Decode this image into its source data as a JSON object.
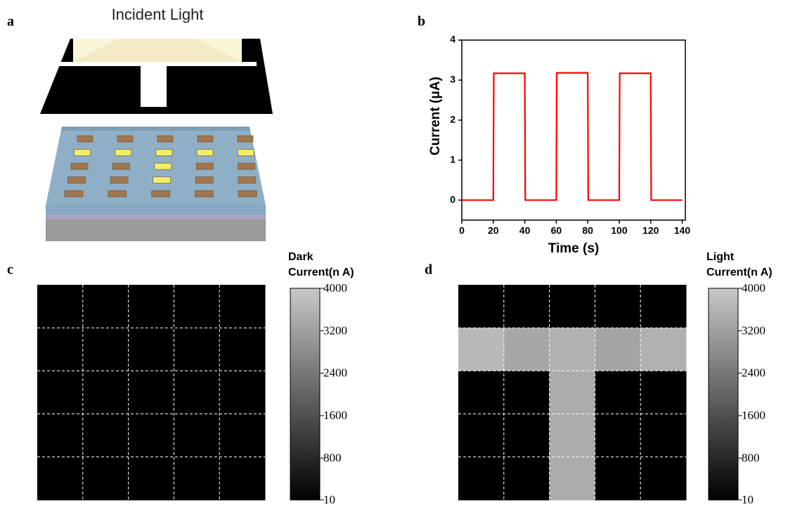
{
  "illustration": {
    "label": "a",
    "caption": "Incident Light"
  },
  "chart_data": [
    {
      "type": "line",
      "label": "b",
      "xlabel": "Time (s)",
      "ylabel": "Current (μA)",
      "color": "#ff0000",
      "x": [
        0,
        20,
        20.3,
        40,
        40.3,
        60,
        60.3,
        80,
        80.3,
        100,
        100.3,
        120,
        120.3,
        140
      ],
      "values": [
        0,
        0,
        3.17,
        3.17,
        0,
        0,
        3.18,
        3.18,
        0,
        0,
        3.17,
        3.17,
        0,
        0
      ],
      "xlim": [
        0,
        142
      ],
      "ylim": [
        -0.5,
        4
      ],
      "xticks": [
        0,
        20,
        40,
        60,
        80,
        100,
        120,
        140
      ],
      "yticks": [
        0,
        1,
        2,
        3,
        4
      ]
    },
    {
      "type": "heatmap",
      "label": "c",
      "colorbar_title": [
        "Dark",
        "Current(n A)"
      ],
      "colormap": [
        "#000000",
        "#c8c8c8"
      ],
      "clim": [
        10,
        4000
      ],
      "cticks": [
        10,
        800,
        1600,
        2400,
        3200,
        4000
      ],
      "values": [
        [
          10,
          10,
          10,
          10,
          10
        ],
        [
          10,
          10,
          10,
          10,
          10
        ],
        [
          10,
          10,
          10,
          10,
          10
        ],
        [
          10,
          10,
          10,
          10,
          10
        ],
        [
          10,
          10,
          10,
          10,
          10
        ]
      ]
    },
    {
      "type": "heatmap",
      "label": "d",
      "colorbar_title": [
        "Light",
        "Current(n A)"
      ],
      "colormap": [
        "#000000",
        "#c8c8c8"
      ],
      "clim": [
        10,
        4000
      ],
      "cticks": [
        10,
        800,
        1600,
        2400,
        3200,
        4000
      ],
      "values": [
        [
          10,
          10,
          10,
          10,
          10
        ],
        [
          3700,
          3350,
          3550,
          3300,
          3550
        ],
        [
          10,
          10,
          3450,
          10,
          10
        ],
        [
          10,
          10,
          3450,
          10,
          10
        ],
        [
          10,
          10,
          3450,
          10,
          10
        ]
      ]
    }
  ]
}
